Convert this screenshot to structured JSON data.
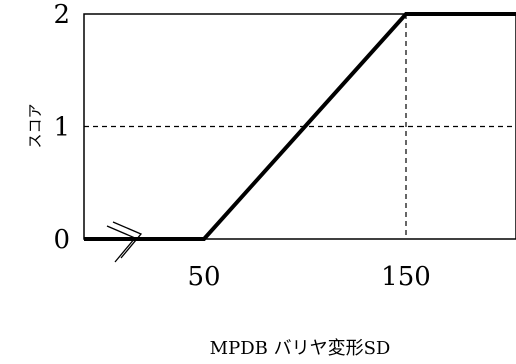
{
  "chart_data": {
    "type": "line",
    "xlabel": "MPDB バリヤ変形SD",
    "ylabel": "スコア",
    "x_ticks": [
      {
        "value": 50,
        "label": "50"
      },
      {
        "value": 150,
        "label": "150"
      }
    ],
    "y_ticks": [
      {
        "value": 0,
        "label": "0"
      },
      {
        "value": 1,
        "label": "1"
      },
      {
        "value": 2,
        "label": "2"
      }
    ],
    "xlim": [
      0,
      200
    ],
    "ylim": [
      0,
      2
    ],
    "axis_break": "x",
    "series": [
      {
        "x": [
          0,
          50,
          150,
          200
        ],
        "y": [
          0,
          0,
          2,
          2
        ]
      }
    ],
    "reference_lines": [
      {
        "axis": "y",
        "value": 1,
        "style": "dashed"
      },
      {
        "axis": "x",
        "value": 150,
        "style": "dashed"
      }
    ],
    "colors": {
      "line": "#000000",
      "frame": "#000000",
      "background": "#ffffff"
    }
  }
}
